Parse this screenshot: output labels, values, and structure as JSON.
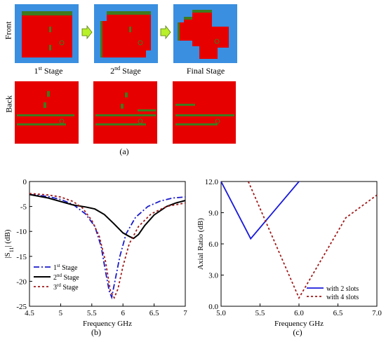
{
  "part_a": {
    "row_labels": {
      "front": "Front",
      "back": "Back"
    },
    "stages": [
      {
        "base": "1",
        "sup": "st",
        "rest": " Stage"
      },
      {
        "base": "2",
        "sup": "nd",
        "rest": " Stage"
      },
      {
        "base": "Final Stage",
        "sup": "",
        "rest": ""
      }
    ],
    "caption": "(a)",
    "colors": {
      "substrate": "#3a8fe0",
      "patch": "#e60000",
      "slot": "#3f7a1e",
      "arrow": "#b8f02a"
    }
  },
  "captions": {
    "b": "(b)",
    "c": "(c)"
  },
  "chart_data": [
    {
      "type": "line",
      "xlabel": "Frequency GHz",
      "ylabel": "|S11| (dB)",
      "ylabel_main": "|S",
      "ylabel_sub": "11",
      "ylabel_end": "| (dB)",
      "xlim": [
        4.5,
        7
      ],
      "ylim": [
        -25,
        0
      ],
      "xticks": [
        "4.5",
        "5",
        "5.5",
        "6",
        "6.5",
        "7"
      ],
      "yticks": [
        "0",
        "-5",
        "-10",
        "-15",
        "-20",
        "-25"
      ],
      "legend": "bottom-left",
      "series": [
        {
          "name": "1st Stage",
          "name_base": "1",
          "name_sup": "st",
          "name_rest": " Stage",
          "color": "#1a1acc",
          "dash": "8,3,2,3",
          "x": [
            4.5,
            4.8,
            5.0,
            5.2,
            5.4,
            5.55,
            5.65,
            5.72,
            5.78,
            5.82,
            5.87,
            5.95,
            6.05,
            6.2,
            6.4,
            6.6,
            6.8,
            7.0
          ],
          "y": [
            -2.6,
            -3.0,
            -3.6,
            -4.6,
            -6.5,
            -9.0,
            -13.0,
            -18.0,
            -22.0,
            -23.2,
            -20.0,
            -15.0,
            -10.5,
            -7.2,
            -5.0,
            -3.9,
            -3.3,
            -3.1
          ]
        },
        {
          "name": "2nd Stage",
          "name_base": "2",
          "name_sup": "nd",
          "name_rest": " Stage",
          "color": "#000000",
          "dash": "",
          "x": [
            4.5,
            4.8,
            5.0,
            5.2,
            5.4,
            5.55,
            5.7,
            5.85,
            6.0,
            6.1,
            6.17,
            6.25,
            6.35,
            6.5,
            6.7,
            6.85,
            7.0
          ],
          "y": [
            -2.6,
            -3.3,
            -4.0,
            -4.7,
            -5.1,
            -5.5,
            -6.6,
            -8.4,
            -10.3,
            -11.0,
            -11.4,
            -10.6,
            -8.8,
            -6.7,
            -5.0,
            -4.3,
            -3.8
          ]
        },
        {
          "name": "3rd Stage",
          "name_base": "3",
          "name_sup": "rd",
          "name_rest": " Stage",
          "color": "#a01a1a",
          "dash": "3,3",
          "x": [
            4.5,
            4.8,
            5.0,
            5.2,
            5.35,
            5.5,
            5.62,
            5.72,
            5.8,
            5.86,
            5.92,
            6.0,
            6.1,
            6.25,
            6.45,
            6.7,
            7.0
          ],
          "y": [
            -2.4,
            -2.7,
            -3.1,
            -4.0,
            -5.3,
            -7.8,
            -11.0,
            -16.0,
            -22.0,
            -23.3,
            -21.5,
            -17.0,
            -12.5,
            -9.0,
            -6.5,
            -5.0,
            -4.3
          ]
        }
      ]
    },
    {
      "type": "line",
      "xlabel": "Frequency GHz",
      "ylabel": "Axial Ratio (dB)",
      "xlim": [
        5.0,
        7.0
      ],
      "ylim": [
        0,
        12
      ],
      "xticks": [
        "5.0",
        "5.5",
        "6.0",
        "6.5",
        "7.0"
      ],
      "yticks": [
        "12.0",
        "9.0",
        "6.0",
        "3.0",
        "0.0"
      ],
      "legend": "bottom-right",
      "series": [
        {
          "name": "with 2 slots",
          "color": "#1a1adc",
          "dash": "",
          "x": [
            5.0,
            5.38,
            6.0
          ],
          "y": [
            12.0,
            6.5,
            12.0
          ]
        },
        {
          "name": "with 4 slots",
          "color": "#a01a1a",
          "dash": "3,3",
          "x": [
            5.35,
            6.0,
            6.6,
            7.0
          ],
          "y": [
            12.0,
            0.8,
            8.5,
            10.7
          ]
        }
      ]
    }
  ]
}
